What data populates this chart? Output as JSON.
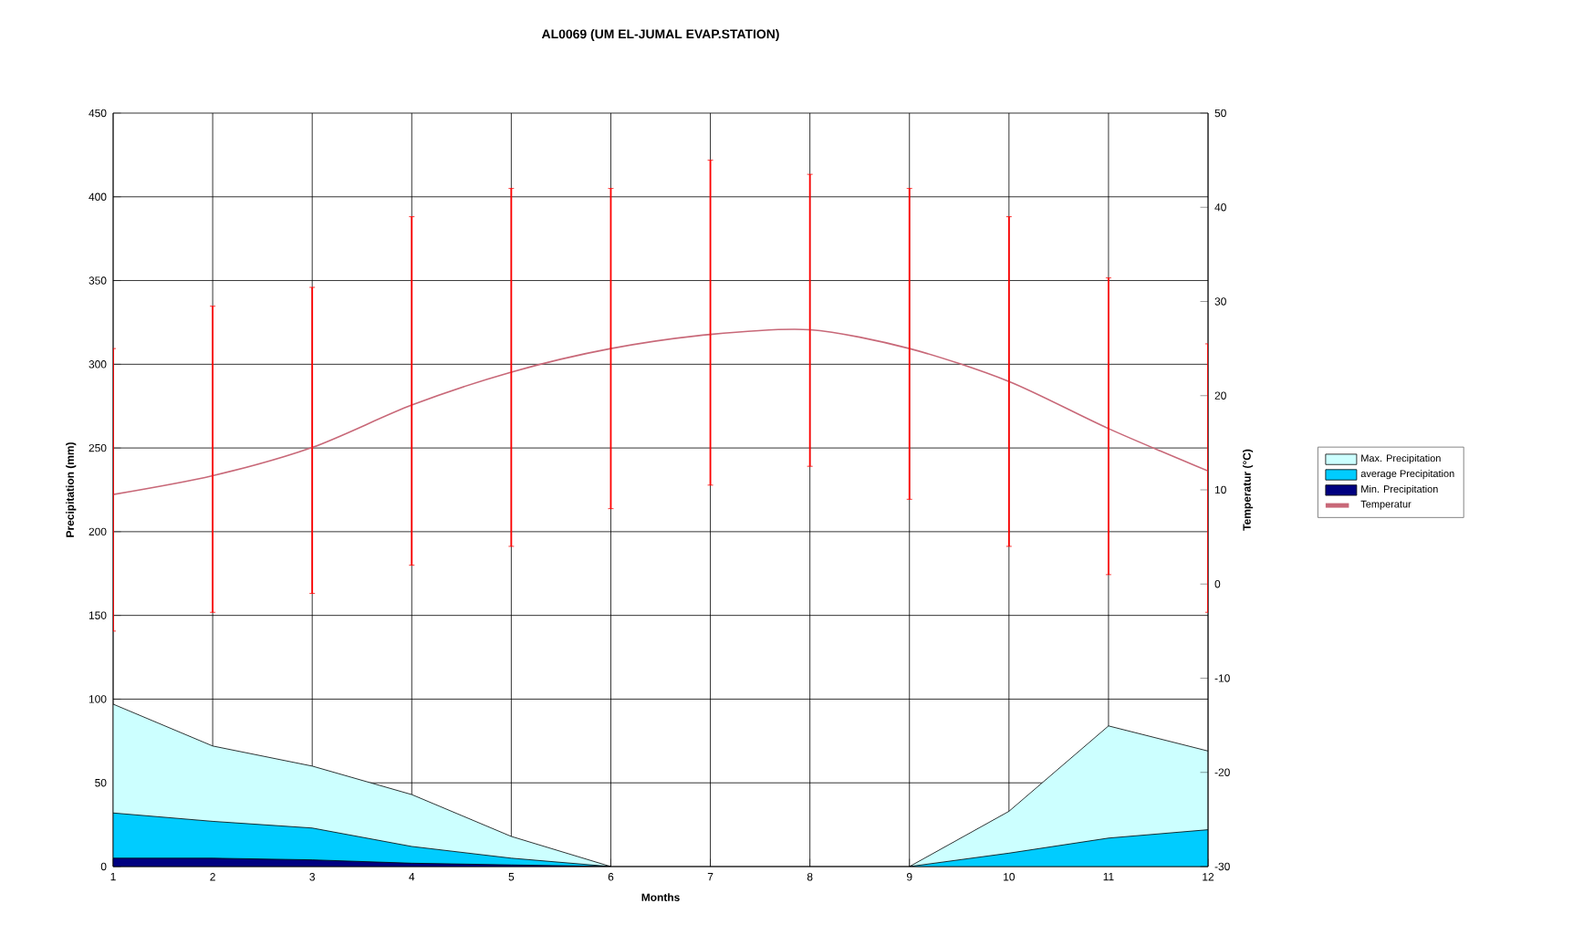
{
  "chart_data": {
    "type": "area",
    "title": "AL0069 (UM EL-JUMAL EVAP.STATION)",
    "xlabel": "Months",
    "ylabel": "Precipitation (mm)",
    "y2label": "Temperatur (°C)",
    "x": [
      1,
      2,
      3,
      4,
      5,
      6,
      7,
      8,
      9,
      10,
      11,
      12
    ],
    "xlim": [
      1,
      12
    ],
    "xticks": [
      1,
      2,
      3,
      4,
      5,
      6,
      7,
      8,
      9,
      10,
      11,
      12
    ],
    "ylim": [
      0,
      450
    ],
    "yticks": [
      0,
      50,
      100,
      150,
      200,
      250,
      300,
      350,
      400,
      450
    ],
    "y2lim": [
      -30,
      50
    ],
    "y2ticks": [
      -30,
      -20,
      -10,
      0,
      10,
      20,
      30,
      40,
      50
    ],
    "grid": true,
    "legend": "right",
    "series": [
      {
        "name": "Max. Precipitation",
        "color": "#ccffff",
        "values": [
          97,
          72,
          60,
          43,
          18,
          0,
          null,
          null,
          0,
          33,
          84,
          69
        ]
      },
      {
        "name": "average Precipitation",
        "color": "#00ccff",
        "values": [
          32,
          27,
          23,
          12,
          5,
          0,
          null,
          null,
          0,
          8,
          17,
          22
        ]
      },
      {
        "name": "Min. Precipitation",
        "color": "#000080",
        "values": [
          5,
          5,
          4,
          2,
          1,
          0,
          null,
          null,
          null,
          null,
          null,
          null
        ]
      },
      {
        "name": "Temperatur",
        "type": "line",
        "axis": "y2",
        "color": "#c86878",
        "values": [
          9.5,
          11.5,
          14.5,
          19,
          22.5,
          25,
          26.5,
          27,
          25,
          21.5,
          16.5,
          12
        ],
        "errors": [
          [
            -5,
            25
          ],
          [
            -3,
            29.5
          ],
          [
            -1,
            31.5
          ],
          [
            2,
            39
          ],
          [
            4,
            42
          ],
          [
            8,
            42
          ],
          [
            10.5,
            45
          ],
          [
            12.5,
            43.5
          ],
          [
            9,
            42
          ],
          [
            4,
            39
          ],
          [
            1,
            32.5
          ],
          [
            -3,
            25.5
          ]
        ]
      }
    ]
  }
}
